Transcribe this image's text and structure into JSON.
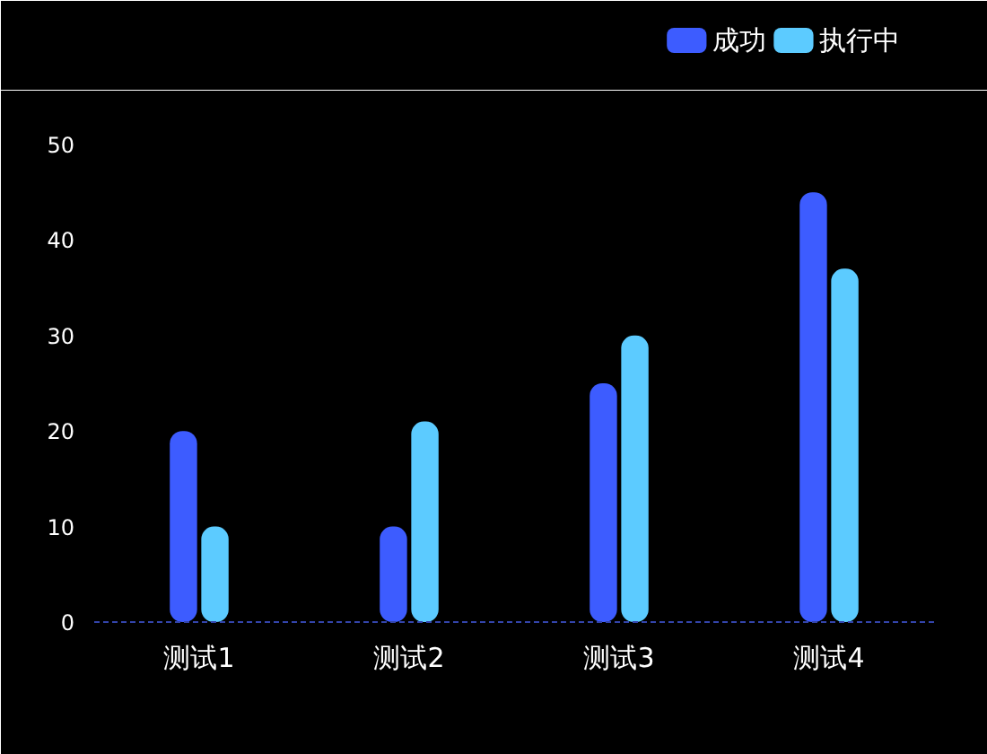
{
  "chart_data": {
    "type": "bar",
    "categories": [
      "测试1",
      "测试2",
      "测试3",
      "测试4"
    ],
    "series": [
      {
        "name": "成功",
        "color": "#3d5cff",
        "values": [
          20,
          10,
          25,
          45
        ]
      },
      {
        "name": "执行中",
        "color": "#5ccbff",
        "values": [
          10,
          21,
          30,
          37
        ]
      }
    ],
    "ylim": [
      0,
      50
    ],
    "yticks": [
      0,
      10,
      20,
      30,
      40,
      50
    ],
    "grid": false,
    "legend": "top right"
  }
}
